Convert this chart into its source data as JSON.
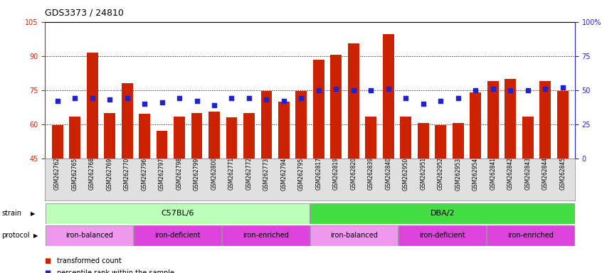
{
  "title": "GDS3373 / 24810",
  "samples": [
    "GSM262762",
    "GSM262765",
    "GSM262768",
    "GSM262769",
    "GSM262770",
    "GSM262796",
    "GSM262797",
    "GSM262798",
    "GSM262799",
    "GSM262800",
    "GSM262771",
    "GSM262772",
    "GSM262773",
    "GSM262794",
    "GSM262795",
    "GSM262817",
    "GSM262819",
    "GSM262820",
    "GSM262839",
    "GSM262840",
    "GSM262950",
    "GSM262951",
    "GSM262952",
    "GSM262953",
    "GSM262954",
    "GSM262841",
    "GSM262842",
    "GSM262843",
    "GSM262844",
    "GSM262845"
  ],
  "bar_values": [
    59.5,
    63.5,
    91.5,
    65.0,
    78.0,
    64.5,
    57.0,
    63.5,
    65.0,
    65.5,
    63.0,
    65.0,
    74.5,
    70.0,
    74.5,
    88.5,
    90.5,
    95.5,
    63.5,
    99.5,
    63.5,
    60.5,
    59.5,
    60.5,
    74.0,
    79.0,
    80.0,
    63.5,
    79.0,
    74.5
  ],
  "dot_percentiles": [
    42,
    44,
    44,
    43,
    44,
    40,
    41,
    44,
    42,
    39,
    44,
    44,
    43,
    42,
    44,
    50,
    51,
    50,
    50,
    51,
    44,
    40,
    42,
    44,
    50,
    51,
    50,
    50,
    51,
    52
  ],
  "ylim": [
    45,
    105
  ],
  "y_left_ticks": [
    45,
    60,
    75,
    90,
    105
  ],
  "y_right_ticks": [
    0,
    25,
    50,
    75,
    100
  ],
  "hlines": [
    60,
    75,
    90
  ],
  "bar_color": "#cc2200",
  "dot_color": "#2222cc",
  "bg_color": "#ffffff",
  "xtick_bg": "#e0e0e0",
  "strain_groups": [
    {
      "label": "C57BL/6",
      "start": 0,
      "end": 15,
      "color": "#bbffbb"
    },
    {
      "label": "DBA/2",
      "start": 15,
      "end": 30,
      "color": "#44dd44"
    }
  ],
  "protocol_groups": [
    {
      "label": "iron-balanced",
      "start": 0,
      "end": 5,
      "color": "#ee99ee"
    },
    {
      "label": "iron-deficient",
      "start": 5,
      "end": 10,
      "color": "#dd44dd"
    },
    {
      "label": "iron-enriched",
      "start": 10,
      "end": 15,
      "color": "#dd44dd"
    },
    {
      "label": "iron-balanced",
      "start": 15,
      "end": 20,
      "color": "#ee99ee"
    },
    {
      "label": "iron-deficient",
      "start": 20,
      "end": 25,
      "color": "#dd44dd"
    },
    {
      "label": "iron-enriched",
      "start": 25,
      "end": 30,
      "color": "#dd44dd"
    }
  ]
}
